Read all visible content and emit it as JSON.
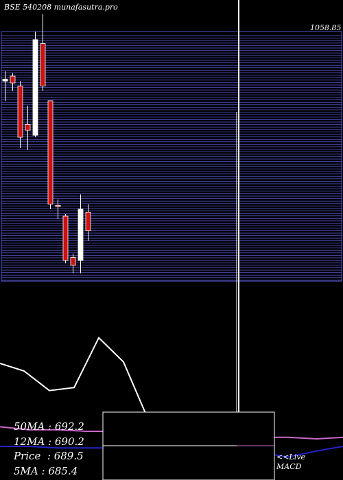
{
  "header": {
    "title": "BSE 540208 munafasutra.pro"
  },
  "colors": {
    "background": "#000000",
    "gridline": "#5555cc",
    "bull_candle": "#ffffff",
    "bear_candle": "#cc1111",
    "price_line": "#ffffff",
    "ma_line_magenta": "#cc66cc",
    "ma_line_blue": "#2222cc"
  },
  "moving_averages": [
    {
      "label": "50MA",
      "value": "692.2"
    },
    {
      "label": "12MA",
      "value": "690.2"
    },
    {
      "label": "Price",
      "value": "689.5"
    },
    {
      "label": "5MA",
      "value": "685.4"
    }
  ],
  "live_label": "<<Live",
  "macd_label": "MACD",
  "axis_top_label": "1058.85",
  "chart_data": {
    "type": "candlestick",
    "title": "BSE 540208 munafasutra.pro",
    "candles": [
      {
        "open": 1010,
        "close": 1012,
        "high": 1020,
        "low": 990,
        "direction": "up"
      },
      {
        "open": 1015,
        "close": 1008,
        "high": 1018,
        "low": 1000,
        "direction": "down"
      },
      {
        "open": 1005,
        "close": 953,
        "high": 1010,
        "low": 942,
        "direction": "down"
      },
      {
        "open": 966,
        "close": 960,
        "high": 985,
        "low": 940,
        "direction": "down"
      },
      {
        "open": 955,
        "close": 1052,
        "high": 1060,
        "low": 953,
        "direction": "up"
      },
      {
        "open": 1048,
        "close": 1005,
        "high": 1078,
        "low": 1000,
        "direction": "down"
      },
      {
        "open": 990,
        "close": 885,
        "high": 990,
        "low": 880,
        "direction": "down"
      },
      {
        "open": 884,
        "close": 883,
        "high": 890,
        "low": 870,
        "direction": "down"
      },
      {
        "open": 873,
        "close": 828,
        "high": 875,
        "low": 825,
        "direction": "down"
      },
      {
        "open": 831,
        "close": 823,
        "high": 835,
        "low": 815,
        "direction": "down"
      },
      {
        "open": 828,
        "close": 880,
        "high": 895,
        "low": 815,
        "direction": "up"
      },
      {
        "open": 877,
        "close": 858,
        "high": 885,
        "low": 848,
        "direction": "down"
      }
    ],
    "price_line": [
      620,
      615,
      602,
      604,
      637,
      621,
      585,
      584,
      567,
      567,
      553,
      564,
      567
    ],
    "ma_line": [
      578,
      576,
      576,
      575,
      575,
      574,
      573,
      572,
      572,
      571,
      571,
      570,
      571
    ],
    "long_ma_line": [
      565,
      565,
      564,
      564,
      564,
      563,
      563,
      562,
      562,
      561,
      558,
      562,
      565
    ],
    "y_top": 1058.85
  }
}
